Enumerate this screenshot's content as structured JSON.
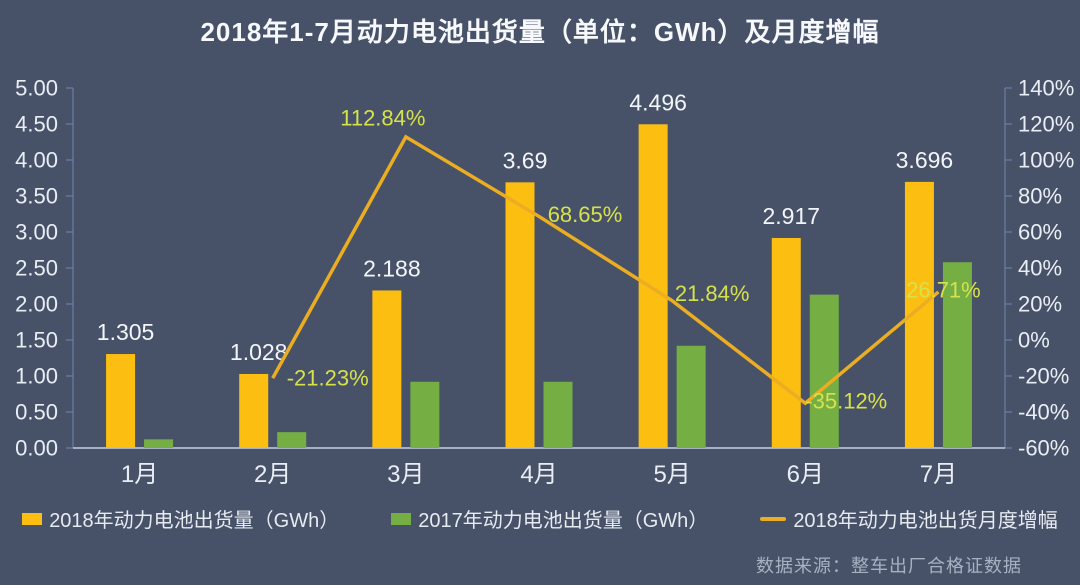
{
  "title": "2018年1-7月动力电池出货量（单位：GWh）及月度增幅",
  "source": "数据来源：整车出厂合格证数据",
  "colors": {
    "background": "#475268",
    "bar_2018": "#FDBE12",
    "bar_2017": "#75AF44",
    "growth_line": "#EBAD21",
    "pct_label": "#D7E14C",
    "value_label": "#F2F5F9",
    "axis_text": "#E9EEF5",
    "axis_line": "#7185AD",
    "baseline": "#C7D0DF",
    "legend_text": "#E6EAF1",
    "source_text": "#A7B1C2"
  },
  "chart_data": {
    "type": "combo",
    "title": "2018年1-7月动力电池出货量（单位：GWh）及月度增幅",
    "categories": [
      "1月",
      "2月",
      "3月",
      "4月",
      "5月",
      "6月",
      "7月"
    ],
    "series": [
      {
        "name": "2018年动力电池出货量（GWh）",
        "kind": "bar",
        "axis": "left",
        "color": "#FDBE12",
        "values": [
          1.305,
          1.028,
          2.188,
          3.69,
          4.496,
          2.917,
          3.696
        ],
        "labels": [
          "1.305",
          "1.028",
          "2.188",
          "3.69",
          "4.496",
          "2.917",
          "3.696"
        ]
      },
      {
        "name": "2017年动力电池出货量（GWh）",
        "kind": "bar",
        "axis": "left",
        "color": "#75AF44",
        "values": [
          0.12,
          0.22,
          0.92,
          0.92,
          1.42,
          2.13,
          2.58
        ],
        "labels": [
          "",
          "",
          "",
          "",
          "",
          "",
          ""
        ]
      },
      {
        "name": "2018年动力电池出货月度增幅",
        "kind": "line",
        "axis": "right",
        "color": "#EBAD21",
        "values": [
          null,
          -21.23,
          112.84,
          68.65,
          21.84,
          -35.12,
          26.71
        ],
        "labels": [
          "",
          "-21.23%",
          "112.84%",
          "68.65%",
          "21.84%",
          "-35.12%",
          "26.71%"
        ]
      }
    ],
    "left_axis": {
      "min": 0,
      "max": 5,
      "ticks": [
        "0.00",
        "0.50",
        "1.00",
        "1.50",
        "2.00",
        "2.50",
        "3.00",
        "3.50",
        "4.00",
        "4.50",
        "5.00"
      ]
    },
    "right_axis": {
      "min": -60,
      "max": 140,
      "ticks": [
        "-60%",
        "-40%",
        "-20%",
        "0%",
        "20%",
        "40%",
        "60%",
        "80%",
        "100%",
        "120%",
        "140%"
      ]
    },
    "grid": false,
    "legend_position": "bottom"
  }
}
